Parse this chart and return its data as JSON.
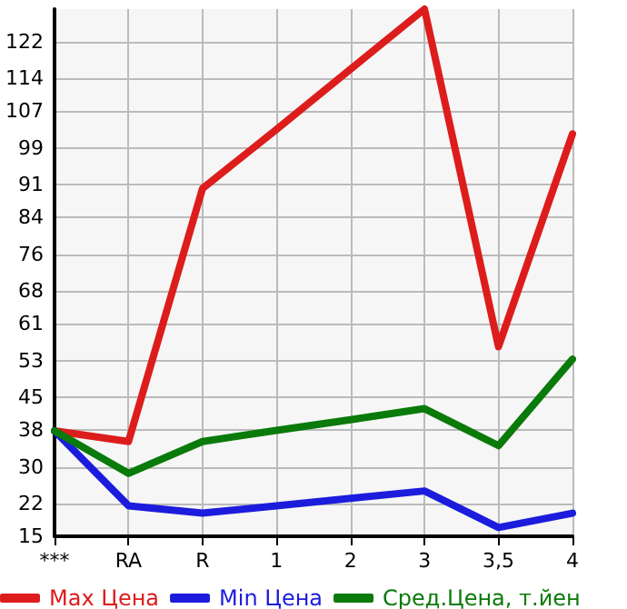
{
  "chart_data": {
    "type": "line",
    "categories": [
      "***",
      "RA",
      "R",
      "1",
      "2",
      "3",
      "3,5",
      "4"
    ],
    "series": [
      {
        "name": "Max Цена",
        "color": "#dd1c1c",
        "values": [
          37.8,
          35.5,
          90.2,
          103,
          116,
          129,
          56,
          102
        ]
      },
      {
        "name": "Min Цена",
        "color": "#1c1cdd",
        "values": [
          37.8,
          21.6,
          20,
          21.6,
          23.2,
          24.8,
          16.9,
          20
        ]
      },
      {
        "name": "Сред.Цена, т.йен",
        "color": "#0a7a0a",
        "values": [
          37.8,
          28.6,
          35.5,
          37.9,
          40.2,
          42.6,
          34.6,
          53.3
        ]
      }
    ],
    "ylim": [
      15,
      129
    ],
    "yticks": [
      15,
      22,
      30,
      38,
      45,
      53,
      61,
      68,
      76,
      84,
      91,
      99,
      107,
      114,
      122
    ],
    "grid": true,
    "legend": "bottom",
    "marker": "none",
    "line_style": "solid"
  }
}
